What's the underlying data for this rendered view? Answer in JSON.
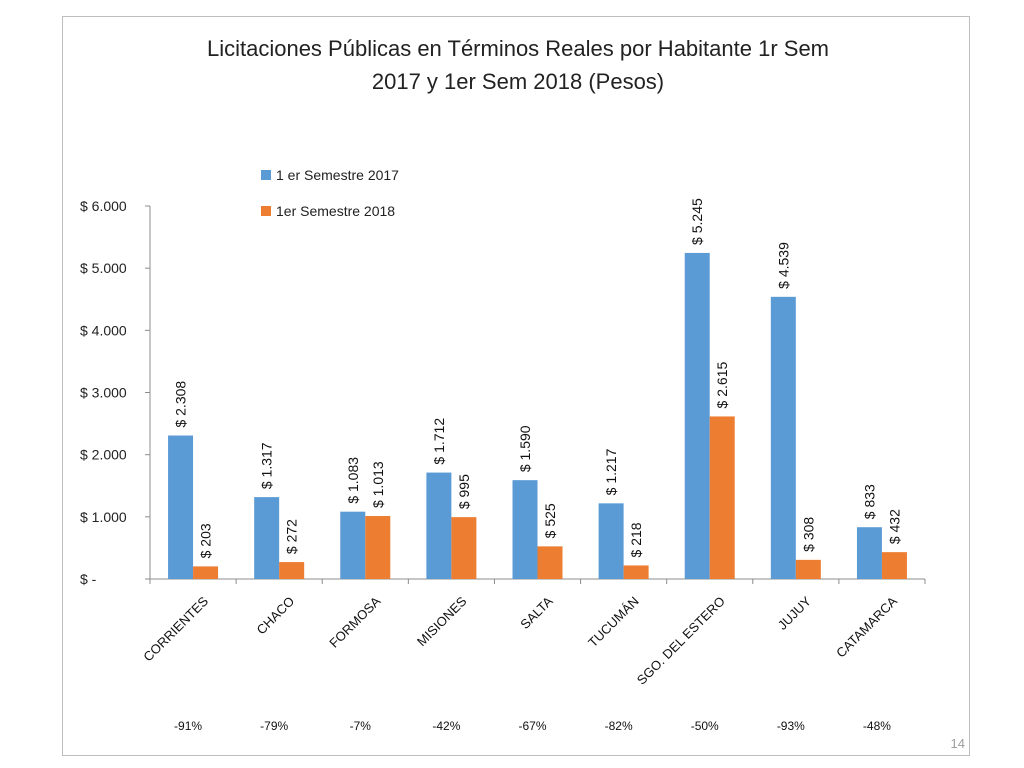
{
  "slide": {
    "page_number": "14"
  },
  "chart_data": {
    "type": "bar",
    "title": "Licitaciones Públicas en Términos Reales por Habitante 1r Sem 2017 y 1er Sem 2018 (Pesos)",
    "title_lines": [
      "Licitaciones Públicas en Términos Reales por Habitante 1r Sem",
      "2017 y 1er Sem 2018 (Pesos)"
    ],
    "xlabel": "",
    "ylabel": "",
    "ylim": [
      0,
      6000
    ],
    "yticks": [
      0,
      1000,
      2000,
      3000,
      4000,
      5000,
      6000
    ],
    "ytick_labels": [
      "$ -",
      "$ 1.000",
      "$ 2.000",
      "$ 3.000",
      "$ 4.000",
      "$ 5.000",
      "$ 6.000"
    ],
    "grid": false,
    "legend_position": "top-left",
    "categories": [
      "CORRIENTES",
      "CHACO",
      "FORMOSA",
      "MISIONES",
      "SALTA",
      "TUCUMÁN",
      "SGO. DEL ESTERO",
      "JUJUY",
      "CATAMARCA"
    ],
    "series": [
      {
        "name": "1 er Semestre 2017",
        "color": "#5b9bd5",
        "values": [
          2308,
          1317,
          1083,
          1712,
          1590,
          1217,
          5245,
          4539,
          833
        ],
        "labels": [
          "$ 2.308",
          "$ 1.317",
          "$ 1.083",
          "$ 1.712",
          "$ 1.590",
          "$ 1.217",
          "$ 5.245",
          "$ 4.539",
          "$ 833"
        ]
      },
      {
        "name": "1er Semestre 2018",
        "color": "#ed7d31",
        "values": [
          203,
          272,
          1013,
          995,
          525,
          218,
          2615,
          308,
          432
        ],
        "labels": [
          "$ 203",
          "$ 272",
          "$ 1.013",
          "$ 995",
          "$ 525",
          "$ 218",
          "$ 2.615",
          "$ 308",
          "$ 432"
        ]
      }
    ],
    "changes": [
      "-91%",
      "-79%",
      "-7%",
      "-42%",
      "-67%",
      "-82%",
      "-50%",
      "-93%",
      "-48%"
    ]
  }
}
